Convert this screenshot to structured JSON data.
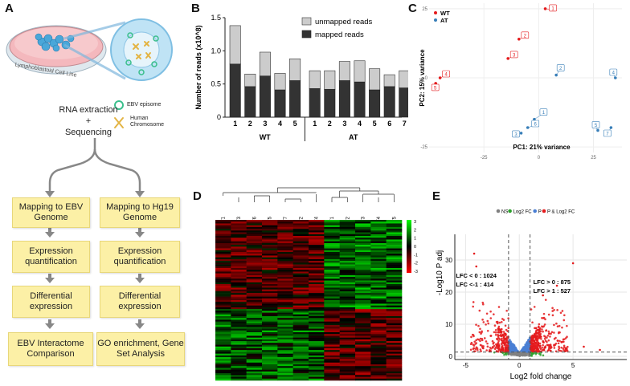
{
  "panels": {
    "a": "A",
    "b": "B",
    "c": "C",
    "d": "D",
    "e": "E"
  },
  "panel_a": {
    "dish_label": "Lymphoblastoid Cell Line",
    "rna_text": "RNA extraction",
    "plus": "+",
    "seq_text": "Sequencing",
    "legend_episome": "EBV episome",
    "legend_chrom": "Human Chromosome",
    "left_flow": [
      "Mapping to EBV Genome",
      "Expression quantification",
      "Differential expression",
      "EBV Interactome Comparison"
    ],
    "right_flow": [
      "Mapping to Hg19 Genome",
      "Expression quantification",
      "Differential expression",
      "GO enrichment, Gene Set Analysis"
    ]
  },
  "chart_data": [
    {
      "type": "bar",
      "stacked": true,
      "ylabel": "Number of reads (x10^8)",
      "ylim": [
        0,
        1.5
      ],
      "yticks": [
        "0",
        "0.5",
        "1.0",
        "1.5"
      ],
      "categories": [
        "1",
        "2",
        "3",
        "4",
        "5",
        "1",
        "2",
        "3",
        "4",
        "5",
        "6",
        "7"
      ],
      "groups": [
        {
          "name": "WT",
          "count": 5
        },
        {
          "name": "AT",
          "count": 7
        }
      ],
      "series": [
        {
          "name": "mapped reads",
          "color": "#333333",
          "values": [
            0.8,
            0.46,
            0.62,
            0.41,
            0.55,
            0.43,
            0.42,
            0.55,
            0.53,
            0.41,
            0.46,
            0.44
          ]
        },
        {
          "name": "unmapped reads",
          "color": "#cccccc",
          "values": [
            0.58,
            0.19,
            0.36,
            0.25,
            0.33,
            0.27,
            0.28,
            0.29,
            0.32,
            0.32,
            0.18,
            0.26
          ]
        }
      ]
    },
    {
      "type": "scatter",
      "xlabel": "PC1: 21% variance",
      "ylabel": "PC2: 15% variance",
      "xlim": [
        -50,
        38
      ],
      "ylim": [
        -27,
        27
      ],
      "xticks": [
        "-25",
        "0",
        "25"
      ],
      "yticks": [
        "25",
        "0",
        "-25"
      ],
      "series": [
        {
          "name": "WT",
          "color": "#e41a1c",
          "points": [
            {
              "x": 3,
              "y": 25,
              "label": "1"
            },
            {
              "x": -9,
              "y": 14,
              "label": "2"
            },
            {
              "x": -14,
              "y": 7,
              "label": "3"
            },
            {
              "x": -45,
              "y": 0,
              "label": "4"
            },
            {
              "x": -47,
              "y": -2,
              "label": "5"
            }
          ]
        },
        {
          "name": "AT",
          "color": "#377eb8",
          "points": [
            {
              "x": -2,
              "y": -15,
              "label": "1"
            },
            {
              "x": 8,
              "y": 1,
              "label": "2"
            },
            {
              "x": -8,
              "y": -20,
              "label": "3"
            },
            {
              "x": 35,
              "y": 0,
              "label": "4"
            },
            {
              "x": 27,
              "y": -19,
              "label": "5"
            },
            {
              "x": -5,
              "y": -18,
              "label": "6"
            },
            {
              "x": 33,
              "y": -18,
              "label": "7"
            }
          ]
        }
      ]
    },
    {
      "type": "heatmap",
      "columns": [
        "AT1",
        "AT3",
        "AT6",
        "AT5",
        "AT7",
        "AT2",
        "AT4",
        "WT1",
        "WT2",
        "WT3",
        "WT4",
        "WT5"
      ],
      "scale": [
        "3",
        "2",
        "1",
        "0",
        "-1",
        "-2",
        "-3"
      ]
    },
    {
      "type": "scatter",
      "subtype": "volcano",
      "legend": [
        "NS",
        "Log2 FC",
        "P",
        "P & Log2 FC"
      ],
      "legend_colors": [
        "#808080",
        "#2ca02c",
        "#4a7fd4",
        "#e41a1c"
      ],
      "xlabel": "Log2 fold change",
      "ylabel": "-Log10 P adj",
      "xlim": [
        -6,
        10
      ],
      "ylim": [
        -1,
        38
      ],
      "xticks": [
        "-5",
        "0",
        "5"
      ],
      "yticks": [
        "0",
        "10",
        "20",
        "30"
      ],
      "annotations": [
        "LFC < 0 : 1024",
        "LFC <-1 : 414",
        "LFC > 0 : 875",
        "LFC > 1 : 527"
      ]
    }
  ]
}
